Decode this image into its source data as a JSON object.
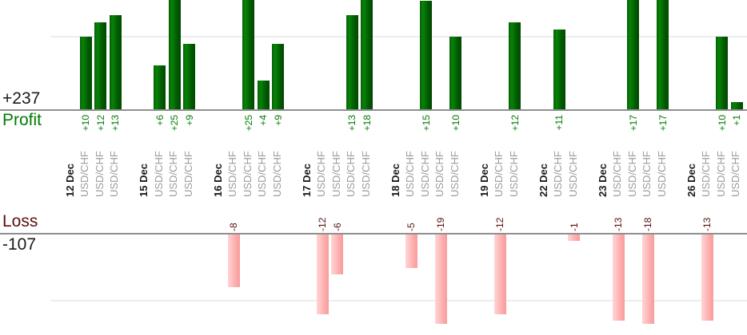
{
  "colors": {
    "profit_text": "#007b00",
    "profit_total_text": "#1a1a1a",
    "loss_text": "#5c0f0f",
    "loss_total_text": "#1a1a1a",
    "date_text": "#1a1a1a",
    "symbol_text": "#9b9b9b",
    "axis_line": "#8f8f8f",
    "gridline": "#ededed",
    "profit_bar_gradient": [
      "#056005",
      "#088308",
      "#025a02",
      "#004900"
    ],
    "loss_bar_gradient": [
      "#ffd4d4",
      "#ffc3c3",
      "#fba6a6",
      "#f89e9e"
    ]
  },
  "chart_data": {
    "type": "bar",
    "orientation": "vertical-grouped-by-day",
    "profit_panel": {
      "axis_label": "Profit",
      "total_label": "+237",
      "total_value": 237,
      "gridline_values": [
        10
      ],
      "visible_value_range": [
        0,
        15
      ],
      "note_bars_clipped_at_top": [
        25,
        25,
        18,
        17,
        17
      ]
    },
    "loss_panel": {
      "axis_label": "Loss",
      "total_label": "-107",
      "total_value": -107,
      "gridline_values": [
        10
      ],
      "visible_value_range": [
        0,
        13.5
      ],
      "note_bars_clipped_at_bottom": [
        -19,
        -18
      ]
    },
    "groups": [
      {
        "date": "12 Dec",
        "trades": [
          {
            "symbol": "USD/CHF",
            "value": 10,
            "label": "+10"
          },
          {
            "symbol": "USD/CHF",
            "value": 12,
            "label": "+12"
          },
          {
            "symbol": "USD/CHF",
            "value": 13,
            "label": "+13"
          }
        ]
      },
      {
        "date": "15 Dec",
        "trades": [
          {
            "symbol": "USD/CHF",
            "value": 6,
            "label": "+6"
          },
          {
            "symbol": "USD/CHF",
            "value": 25,
            "label": "+25"
          },
          {
            "symbol": "USD/CHF",
            "value": 9,
            "label": "+9"
          }
        ]
      },
      {
        "date": "16 Dec",
        "trades": [
          {
            "symbol": "USD/CHF",
            "value": -8,
            "label": "-8"
          },
          {
            "symbol": "USD/CHF",
            "value": 25,
            "label": "+25"
          },
          {
            "symbol": "USD/CHF",
            "value": 4,
            "label": "+4"
          },
          {
            "symbol": "USD/CHF",
            "value": 9,
            "label": "+9"
          }
        ]
      },
      {
        "date": "17 Dec",
        "trades": [
          {
            "symbol": "USD/CHF",
            "value": -12,
            "label": "-12"
          },
          {
            "symbol": "USD/CHF",
            "value": -6,
            "label": "-6"
          },
          {
            "symbol": "USD/CHF",
            "value": 13,
            "label": "+13"
          },
          {
            "symbol": "USD/CHF",
            "value": 18,
            "label": "+18"
          }
        ]
      },
      {
        "date": "18 Dec",
        "trades": [
          {
            "symbol": "USD/CHF",
            "value": -5,
            "label": "-5"
          },
          {
            "symbol": "USD/CHF",
            "value": 15,
            "label": "+15"
          },
          {
            "symbol": "USD/CHF",
            "value": -19,
            "label": "-19"
          },
          {
            "symbol": "USD/CHF",
            "value": 10,
            "label": "+10"
          }
        ]
      },
      {
        "date": "19 Dec",
        "trades": [
          {
            "symbol": "USD/CHF",
            "value": -12,
            "label": "-12"
          },
          {
            "symbol": "USD/CHF",
            "value": 12,
            "label": "+12"
          }
        ]
      },
      {
        "date": "22 Dec",
        "trades": [
          {
            "symbol": "USD/CHF",
            "value": 11,
            "label": "+11"
          },
          {
            "symbol": "USD/CHF",
            "value": -1,
            "label": "-1"
          }
        ]
      },
      {
        "date": "23 Dec",
        "trades": [
          {
            "symbol": "USD/CHF",
            "value": -13,
            "label": "-13"
          },
          {
            "symbol": "USD/CHF",
            "value": 17,
            "label": "+17"
          },
          {
            "symbol": "USD/CHF",
            "value": -18,
            "label": "-18"
          },
          {
            "symbol": "USD/CHF",
            "value": 17,
            "label": "+17"
          }
        ]
      },
      {
        "date": "26 Dec",
        "trades": [
          {
            "symbol": "USD/CHF",
            "value": -13,
            "label": "-13"
          },
          {
            "symbol": "USD/CHF",
            "value": 10,
            "label": "+10"
          },
          {
            "symbol": "USD/CHF",
            "value": 1,
            "label": "+1"
          }
        ]
      }
    ]
  }
}
